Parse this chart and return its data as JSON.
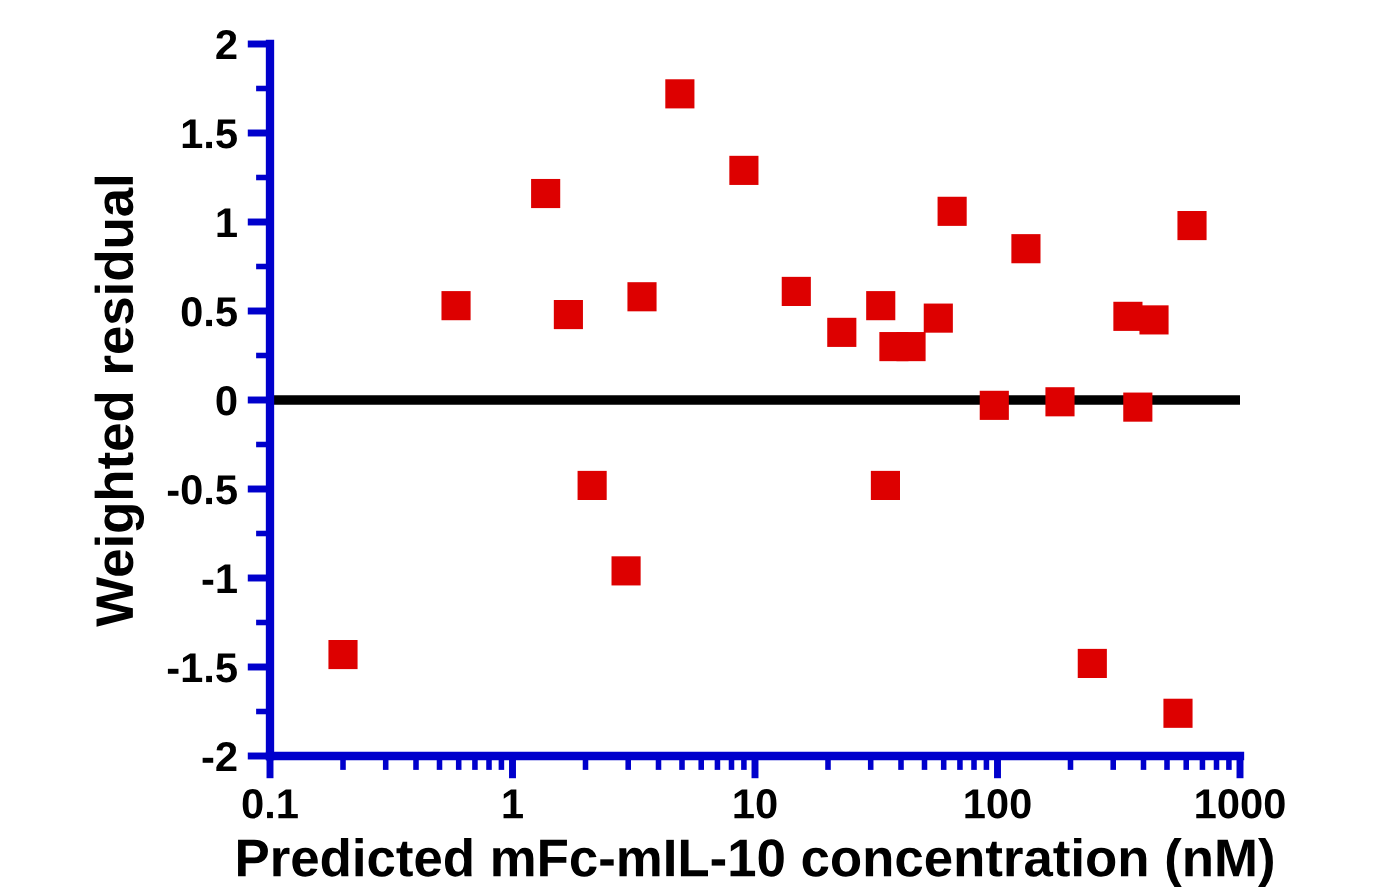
{
  "chart_data": {
    "type": "scatter",
    "xlabel": "Predicted mFc-mIL-10 concentration (nM)",
    "ylabel": "Weighted residual",
    "x": [
      0.2,
      0.585,
      1.37,
      1.7,
      2.13,
      2.94,
      3.42,
      4.9,
      9.0,
      14.8,
      22.8,
      33,
      34.5,
      37.4,
      44,
      57,
      65,
      97,
      131,
      181,
      246,
      345,
      379,
      442,
      555,
      634
    ],
    "series": [
      {
        "color": "#dd0000",
        "values": [
          -1.43,
          0.53,
          1.16,
          0.48,
          -0.48,
          -0.96,
          0.58,
          1.72,
          1.29,
          0.61,
          0.38,
          0.53,
          -0.48,
          0.3,
          0.3,
          0.46,
          1.06,
          -0.03,
          0.85,
          -0.01,
          -1.48,
          0.47,
          -0.04,
          0.45,
          -1.76,
          0.98
        ]
      }
    ],
    "marker": "square",
    "log": "x",
    "xlim": [
      0.1,
      1000
    ],
    "xticks": [
      0.1,
      1,
      10,
      100,
      1000
    ],
    "ylim": [
      -2,
      2
    ],
    "yticks": [
      -2,
      -1.5,
      -1,
      -0.5,
      0,
      0.5,
      1,
      1.5,
      2
    ],
    "ref_lines": [
      {
        "axis": "y",
        "value": 0,
        "color": "#000000",
        "line_style": "solid"
      }
    ],
    "grid": false,
    "legend": false
  }
}
